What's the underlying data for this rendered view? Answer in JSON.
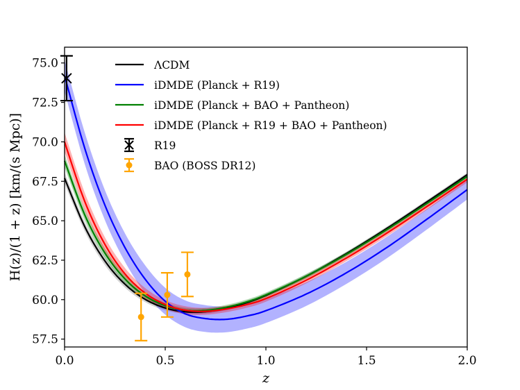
{
  "chart_data": {
    "type": "line",
    "title": "",
    "xlabel": "z",
    "ylabel": "H(z)/(1 + z) [km/(s Mpc)]",
    "xlim": [
      0.0,
      2.0
    ],
    "ylim": [
      57.0,
      76.0
    ],
    "xticks": [
      "0.0",
      "0.5",
      "1.0",
      "1.5",
      "2.0"
    ],
    "yticks": [
      "57.5",
      "60.0",
      "62.5",
      "65.0",
      "67.5",
      "70.0",
      "72.5",
      "75.0"
    ],
    "grid": false,
    "legend_position": "top-center",
    "x": [
      0,
      0.1,
      0.2,
      0.3,
      0.4,
      0.5,
      0.6,
      0.7,
      0.8,
      0.9,
      1.0,
      1.2,
      1.4,
      1.6,
      1.8,
      2.0
    ],
    "series": [
      {
        "name": "ΛCDM",
        "color": "#000000",
        "band_color": "#808080",
        "values": [
          67.7,
          64.63,
          62.46,
          60.98,
          60.02,
          59.47,
          59.23,
          59.24,
          59.45,
          59.79,
          60.27,
          61.48,
          62.92,
          64.51,
          66.2,
          67.92
        ],
        "band": [
          0.35,
          0.3,
          0.27,
          0.22,
          0.18,
          0.15,
          0.12,
          0.12,
          0.12,
          0.12,
          0.12,
          0.12,
          0.12,
          0.12,
          0.12,
          0.12
        ]
      },
      {
        "name": "iDMDE (Planck + R19)",
        "color": "#0000ff",
        "band_color": "#0000ff",
        "values": [
          74.2,
          69.6,
          66.0,
          63.3,
          61.3,
          59.9,
          59.1,
          58.8,
          58.75,
          58.95,
          59.3,
          60.35,
          61.7,
          63.3,
          65.1,
          66.97
        ],
        "band": [
          1.0,
          1.0,
          0.95,
          0.9,
          0.88,
          0.85,
          0.85,
          0.85,
          0.82,
          0.8,
          0.78,
          0.75,
          0.7,
          0.68,
          0.65,
          0.62
        ]
      },
      {
        "name": "iDMDE (Planck + BAO + Pantheon)",
        "color": "#008000",
        "band_color": "#008000",
        "values": [
          68.8,
          65.38,
          62.96,
          61.31,
          60.24,
          59.62,
          59.33,
          59.32,
          59.51,
          59.84,
          60.3,
          61.48,
          62.87,
          64.43,
          66.1,
          67.8
        ],
        "band": [
          0.4,
          0.35,
          0.3,
          0.25,
          0.2,
          0.18,
          0.15,
          0.15,
          0.15,
          0.15,
          0.15,
          0.15,
          0.15,
          0.15,
          0.15,
          0.15
        ]
      },
      {
        "name": "iDMDE (Planck + R19 + BAO + Pantheon)",
        "color": "#ff0000",
        "band_color": "#ff0000",
        "values": [
          70.0,
          66.23,
          63.51,
          61.63,
          60.42,
          59.69,
          59.33,
          59.26,
          59.4,
          59.67,
          60.07,
          61.23,
          62.64,
          64.21,
          65.9,
          67.63
        ],
        "band": [
          0.6,
          0.55,
          0.45,
          0.38,
          0.32,
          0.28,
          0.25,
          0.22,
          0.2,
          0.2,
          0.2,
          0.2,
          0.2,
          0.2,
          0.2,
          0.2
        ]
      }
    ],
    "errorbars": [
      {
        "name": "R19",
        "color": "#000000",
        "marker": "x",
        "points": [
          {
            "z": 0.01,
            "value": 74.03,
            "err": 1.42
          }
        ]
      },
      {
        "name": "BAO (BOSS DR12)",
        "color": "#ffa500",
        "marker": "circle",
        "points": [
          {
            "z": 0.38,
            "value": 58.9,
            "err": 1.5
          },
          {
            "z": 0.51,
            "value": 60.3,
            "err": 1.4
          },
          {
            "z": 0.61,
            "value": 61.6,
            "err": 1.4
          }
        ]
      }
    ]
  }
}
